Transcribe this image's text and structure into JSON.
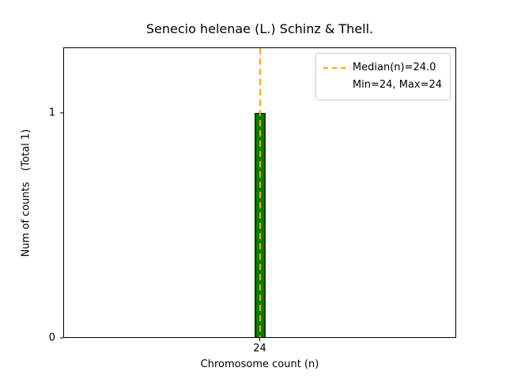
{
  "chart_data": {
    "type": "bar",
    "title": "Senecio helenae (L.) Schinz & Thell.",
    "xlabel": "Chromosome count (n)",
    "ylabel": "Num of counts",
    "total_label": "(Total 1)",
    "categories": [
      24
    ],
    "values": [
      1
    ],
    "xticks": [
      24
    ],
    "yticks": [
      0,
      1
    ],
    "ylim": [
      0,
      1.29
    ],
    "median": 24.0,
    "min": 24,
    "max": 24,
    "grid": false,
    "legend": {
      "position": "upper right",
      "entries": [
        {
          "handle": "dashed-line",
          "label": "Median(n)=24.0"
        },
        {
          "handle": "none",
          "label": "Min=24, Max=24"
        }
      ]
    },
    "colors": {
      "bar_fill": "#008000",
      "bar_edge": "#013b00",
      "median_line": "#FFA500",
      "legend_border": "#cccccc"
    }
  }
}
